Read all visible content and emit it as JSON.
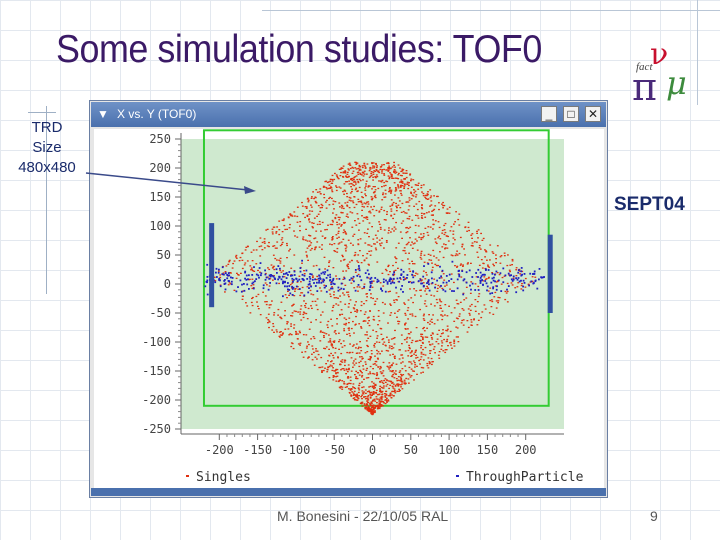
{
  "slide": {
    "title": "Some simulation studies: TOF0",
    "trd_note": [
      "TRD",
      "Size",
      "480x480"
    ],
    "side_label": "SEPT04",
    "footer": "M. Bonesini - 22/10/05 RAL",
    "page_number": "9"
  },
  "logo": {
    "name": "fact-nu-fact-logo",
    "colors": {
      "nu": "#c8102e",
      "pi": "#4a2a7a",
      "mu": "#3d8b3d"
    }
  },
  "window": {
    "title": "X vs. Y (TOF0)",
    "controls": {
      "minimize": "_",
      "maximize": "□",
      "close": "✕"
    }
  },
  "colors": {
    "plot_background": "#cfe9cf",
    "frame_box": "#33cc33",
    "singles": "#e03010",
    "through_particle": "#2020c0",
    "bars": "#3050a0",
    "arrow": "#3a4a8a"
  },
  "chart_data": {
    "type": "scatter",
    "title": "",
    "xlabel": "",
    "ylabel": "",
    "xlim": [
      -250,
      250
    ],
    "ylim": [
      -250,
      250
    ],
    "x_ticks": [
      -200,
      -150,
      -100,
      -50,
      0,
      50,
      100,
      150,
      200
    ],
    "x_tick_labels": [
      "-200",
      "-150",
      "-100",
      "-50",
      "0",
      "50",
      "100",
      "150",
      "200"
    ],
    "y_ticks": [
      250,
      200,
      150,
      100,
      50,
      0,
      -50,
      -100,
      -150,
      -200,
      -250
    ],
    "y_tick_labels": [
      "250",
      "200",
      "150",
      "100",
      "50",
      "0",
      "-50",
      "-100",
      "-150",
      "-200",
      "-250"
    ],
    "grid": false,
    "legend_placement": "bottom",
    "series": [
      {
        "name": "Singles",
        "color": "#e03010",
        "distribution": {
          "shape": "diamond",
          "x_range": [
            -215,
            215
          ],
          "y_range": [
            -225,
            210
          ],
          "approx_count": 2600
        }
      },
      {
        "name": "ThroughParticle",
        "color": "#2020c0",
        "distribution": {
          "shape": "band",
          "x_range": [
            -220,
            225
          ],
          "y_range": [
            -60,
            75
          ],
          "approx_count": 420
        }
      }
    ],
    "annotations": [
      {
        "type": "rectangle",
        "name": "acceptance-box",
        "x0": -220,
        "x1": 230,
        "y0": -210,
        "y1": 265
      },
      {
        "type": "vertical-bar",
        "name": "left-bar",
        "x": -210,
        "y0": -40,
        "y1": 105
      },
      {
        "type": "vertical-bar",
        "name": "right-bar",
        "x": 232,
        "y0": -50,
        "y1": 85
      }
    ]
  }
}
